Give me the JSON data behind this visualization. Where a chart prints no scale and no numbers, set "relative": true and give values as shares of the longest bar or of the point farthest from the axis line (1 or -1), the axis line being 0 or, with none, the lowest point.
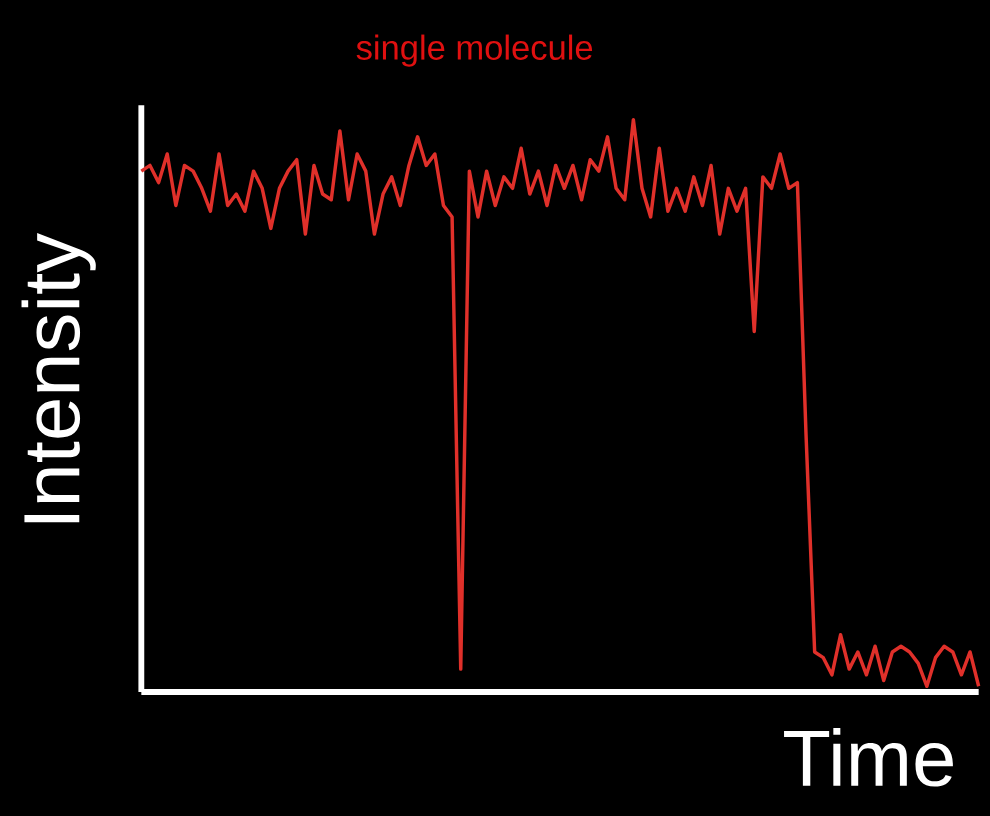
{
  "chart_data": {
    "type": "line",
    "title": "single molecule",
    "xlabel": "Time",
    "ylabel": "Intensity",
    "relative": true,
    "color": "#e0302a",
    "categories": [
      null,
      null,
      null,
      null,
      null,
      null,
      null,
      null,
      null,
      null,
      null,
      null,
      null,
      null,
      null,
      null,
      null,
      null,
      null,
      null,
      null,
      null,
      null,
      null,
      null,
      null,
      null,
      null,
      null,
      null,
      null,
      null,
      null,
      null,
      null,
      null,
      null,
      null,
      null,
      null,
      null,
      null,
      null,
      null,
      null,
      null,
      null,
      null,
      null,
      null,
      null,
      null,
      null,
      null,
      null,
      null,
      null,
      null,
      null,
      null,
      null,
      null,
      null,
      null,
      null,
      null,
      null,
      null,
      null,
      null,
      null,
      null,
      null,
      null,
      null,
      null,
      null,
      null,
      null,
      null,
      null,
      null,
      null,
      null,
      null,
      null,
      null,
      null,
      null,
      null,
      null,
      null,
      null,
      null,
      null,
      null,
      null,
      null
    ],
    "values": [
      0.91,
      0.92,
      0.89,
      0.94,
      0.85,
      0.92,
      0.91,
      0.88,
      0.84,
      0.94,
      0.85,
      0.87,
      0.84,
      0.91,
      0.88,
      0.81,
      0.88,
      0.91,
      0.93,
      0.8,
      0.92,
      0.87,
      0.86,
      0.98,
      0.86,
      0.94,
      0.91,
      0.8,
      0.87,
      0.9,
      0.85,
      0.92,
      0.97,
      0.92,
      0.94,
      0.85,
      0.83,
      0.04,
      0.91,
      0.83,
      0.91,
      0.85,
      0.9,
      0.88,
      0.95,
      0.87,
      0.91,
      0.85,
      0.92,
      0.88,
      0.92,
      0.86,
      0.93,
      0.91,
      0.97,
      0.88,
      0.86,
      1.0,
      0.88,
      0.83,
      0.95,
      0.84,
      0.88,
      0.84,
      0.9,
      0.85,
      0.92,
      0.8,
      0.88,
      0.84,
      0.88,
      0.63,
      0.9,
      0.88,
      0.94,
      0.88,
      0.89,
      0.45,
      0.07,
      0.06,
      0.03,
      0.1,
      0.04,
      0.07,
      0.03,
      0.08,
      0.02,
      0.07,
      0.08,
      0.07,
      0.05,
      0.01,
      0.06,
      0.08,
      0.07,
      0.03,
      0.07,
      0.01
    ]
  }
}
